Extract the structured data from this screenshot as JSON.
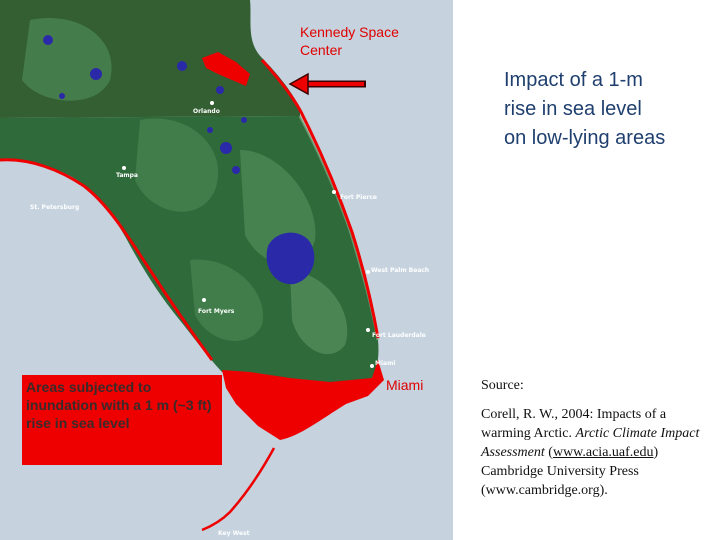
{
  "map": {
    "cities": [
      {
        "key": "orlando",
        "label": "Orlando"
      },
      {
        "key": "tampa",
        "label": "Tampa"
      },
      {
        "key": "st_petersburg",
        "label": "St. Petersburg"
      },
      {
        "key": "fort_pierce",
        "label": "Fort Pierce"
      },
      {
        "key": "west_palm_beach",
        "label": "West Palm Beach"
      },
      {
        "key": "fort_myers",
        "label": "Fort Myers"
      },
      {
        "key": "fort_lauderdale",
        "label": "Fort Lauderdale"
      },
      {
        "key": "miami_small",
        "label": "Miami"
      },
      {
        "key": "key_west",
        "label": "Key West"
      }
    ],
    "annotations": {
      "kennedy_line1": "Kennedy Space",
      "kennedy_line2": "Center",
      "miami": "Miami"
    },
    "legend": {
      "text": "Areas subjected to inundation with a 1 m (~3 ft) rise in sea level"
    },
    "colors": {
      "water": "#c6d3df",
      "land": "#2f6a3a",
      "inundation": "#ee0000",
      "lakes": "#2a2aa8"
    }
  },
  "title": {
    "line1": "Impact of a 1-m",
    "line2": "rise in sea  level",
    "line3": "on low-lying areas"
  },
  "source": {
    "label": "Source:",
    "part1": "Corell, R. W., 2004:  Impacts of a warming Arctic.  ",
    "italic": "Arctic Climate Impact Assessment",
    "part2": " (",
    "link": "www.acia.uaf.edu",
    "part3": ") Cambridge University Press (www.cambridge.org)."
  }
}
